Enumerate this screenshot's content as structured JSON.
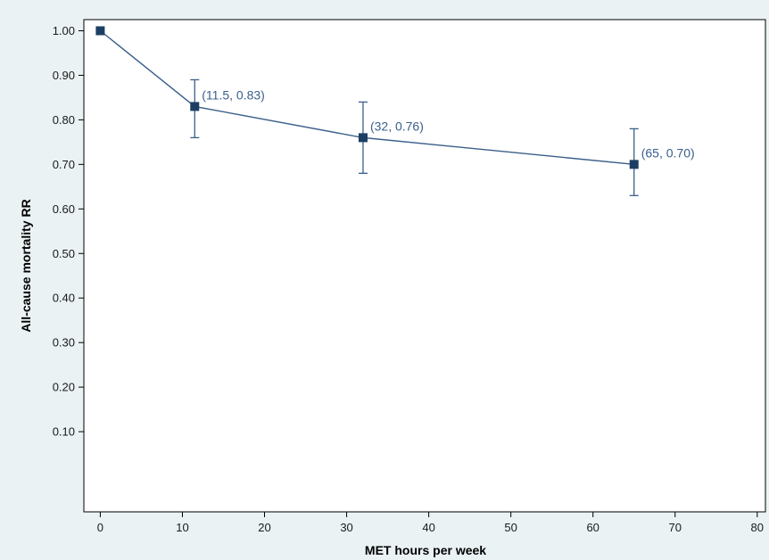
{
  "chart_data": {
    "type": "line",
    "title": "",
    "xlabel": "MET hours per week",
    "ylabel": "All-cause mortality RR",
    "xlim": [
      -2,
      81
    ],
    "ylim": [
      -0.08,
      1.025
    ],
    "x_ticks": [
      0,
      10,
      20,
      30,
      40,
      50,
      60,
      70,
      80
    ],
    "y_ticks": [
      0.1,
      0.2,
      0.3,
      0.4,
      0.5,
      0.6,
      0.7,
      0.8,
      0.9,
      1.0
    ],
    "grid": false,
    "legend": "none",
    "series": [
      {
        "x": [
          0,
          11.5,
          32,
          65
        ],
        "y": [
          1.0,
          0.83,
          0.76,
          0.7
        ],
        "ci_low": [
          null,
          0.76,
          0.68,
          0.63
        ],
        "ci_high": [
          null,
          0.89,
          0.84,
          0.78
        ],
        "point_labels": [
          "",
          "(11.5, 0.83)",
          "(32, 0.76)",
          "(65, 0.70)"
        ]
      }
    ],
    "colors": {
      "line": "#3a5f8a",
      "marker": "#1c3e63",
      "label": "#3a5f8a",
      "plot_background": "#ffffff",
      "page_background": "#eaf2f3"
    }
  }
}
